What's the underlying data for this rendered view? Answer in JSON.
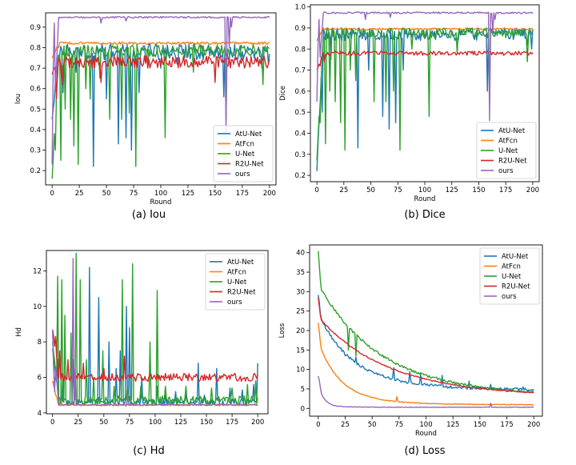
{
  "colors": {
    "AtU-Net": "#1f77b4",
    "AtFcn": "#ff7f0e",
    "U-Net": "#2ca02c",
    "R2U-Net": "#d62728",
    "ours": "#9467bd"
  },
  "chart_data": [
    {
      "id": "iou",
      "type": "line",
      "caption": "(a)  Iou",
      "xlabel": "Round",
      "ylabel": "Iou",
      "xlim": [
        -6,
        206
      ],
      "ylim": [
        0.13,
        0.97
      ],
      "xticks": [
        0,
        25,
        50,
        75,
        100,
        125,
        150,
        175,
        200
      ],
      "yticks": [
        0.2,
        0.3,
        0.4,
        0.5,
        0.6,
        0.7,
        0.8,
        0.9
      ],
      "legend_position": "bottom-right",
      "series": [
        {
          "name": "AtU-Net",
          "base": 0.78,
          "start": 0.45,
          "noise": 0.04,
          "dips": [
            [
              10,
              0.58
            ],
            [
              22,
              0.68
            ],
            [
              38,
              0.22
            ],
            [
              50,
              0.55
            ],
            [
              61,
              0.33
            ],
            [
              68,
              0.36
            ],
            [
              73,
              0.3
            ],
            [
              80,
              0.58
            ],
            [
              100,
              0.7
            ],
            [
              115,
              0.72
            ],
            [
              158,
              0.56
            ],
            [
              193,
              0.7
            ],
            [
              199,
              0.72
            ]
          ]
        },
        {
          "name": "AtFcn",
          "base": 0.822,
          "start": 0.75,
          "noise": 0.006,
          "dips": [
            [
              3,
              0.78
            ],
            [
              6,
              0.8
            ]
          ]
        },
        {
          "name": "U-Net",
          "base": 0.785,
          "start": 0.16,
          "noise": 0.03,
          "dips": [
            [
              3,
              0.3
            ],
            [
              8,
              0.25
            ],
            [
              12,
              0.5
            ],
            [
              17,
              0.45
            ],
            [
              20,
              0.32
            ],
            [
              24,
              0.23
            ],
            [
              31,
              0.6
            ],
            [
              35,
              0.55
            ],
            [
              44,
              0.65
            ],
            [
              53,
              0.45
            ],
            [
              64,
              0.45
            ],
            [
              71,
              0.48
            ],
            [
              77,
              0.22
            ],
            [
              88,
              0.7
            ],
            [
              104,
              0.36
            ],
            [
              130,
              0.68
            ],
            [
              160,
              0.45
            ],
            [
              194,
              0.62
            ]
          ]
        },
        {
          "name": "R2U-Net",
          "base": 0.73,
          "start": 0.67,
          "noise": 0.03,
          "dips": [
            [
              4,
              0.55
            ],
            [
              9,
              0.62
            ],
            [
              45,
              0.63
            ],
            [
              150,
              0.63
            ]
          ]
        },
        {
          "name": "ours",
          "base": 0.948,
          "start": 0.23,
          "noise": 0.004,
          "dips": [
            [
              1,
              0.7
            ],
            [
              2,
              0.92
            ],
            [
              45,
              0.92
            ],
            [
              68,
              0.93
            ],
            [
              160,
              0.38
            ],
            [
              163,
              0.8
            ],
            [
              165,
              0.9
            ]
          ]
        }
      ]
    },
    {
      "id": "dice",
      "type": "line",
      "caption": "(b)  Dice",
      "xlabel": "Round",
      "ylabel": "Dice",
      "xlim": [
        -6,
        206
      ],
      "ylim": [
        0.17,
        1.01
      ],
      "xticks": [
        0,
        25,
        50,
        75,
        100,
        125,
        150,
        175,
        200
      ],
      "yticks": [
        0.2,
        0.3,
        0.4,
        0.5,
        0.6,
        0.7,
        0.8,
        0.9,
        1.0
      ],
      "legend_position": "bottom-right",
      "series": [
        {
          "name": "AtU-Net",
          "base": 0.87,
          "start": 0.22,
          "noise": 0.03,
          "dips": [
            [
              5,
              0.5
            ],
            [
              13,
              0.75
            ],
            [
              38,
              0.33
            ],
            [
              48,
              0.7
            ],
            [
              61,
              0.48
            ],
            [
              67,
              0.42
            ],
            [
              73,
              0.45
            ],
            [
              80,
              0.7
            ],
            [
              100,
              0.85
            ],
            [
              158,
              0.6
            ],
            [
              195,
              0.82
            ],
            [
              199,
              0.8
            ]
          ]
        },
        {
          "name": "AtFcn",
          "base": 0.895,
          "start": 0.84,
          "noise": 0.005,
          "dips": [
            [
              3,
              0.87
            ]
          ]
        },
        {
          "name": "U-Net",
          "base": 0.875,
          "start": 0.27,
          "noise": 0.025,
          "dips": [
            [
              3,
              0.45
            ],
            [
              8,
              0.35
            ],
            [
              12,
              0.6
            ],
            [
              17,
              0.55
            ],
            [
              22,
              0.45
            ],
            [
              26,
              0.32
            ],
            [
              31,
              0.7
            ],
            [
              36,
              0.65
            ],
            [
              53,
              0.55
            ],
            [
              64,
              0.55
            ],
            [
              71,
              0.6
            ],
            [
              77,
              0.32
            ],
            [
              88,
              0.8
            ],
            [
              104,
              0.48
            ],
            [
              130,
              0.78
            ],
            [
              160,
              0.55
            ],
            [
              195,
              0.74
            ]
          ]
        },
        {
          "name": "R2U-Net",
          "base": 0.78,
          "start": 0.7,
          "noise": 0.01,
          "dips": [
            [
              3,
              0.72
            ],
            [
              7,
              0.74
            ]
          ]
        },
        {
          "name": "ours",
          "base": 0.972,
          "start": 0.55,
          "noise": 0.004,
          "dips": [
            [
              1,
              0.8
            ],
            [
              2,
              0.94
            ],
            [
              45,
              0.94
            ],
            [
              68,
              0.95
            ],
            [
              160,
              0.46
            ],
            [
              163,
              0.88
            ],
            [
              165,
              0.94
            ]
          ]
        }
      ]
    },
    {
      "id": "hd",
      "type": "line",
      "caption": "(c)  Hd",
      "xlabel": "",
      "ylabel": "Hd",
      "xlim": [
        -6,
        210
      ],
      "ylim": [
        3.95,
        13.15
      ],
      "xticks": [
        0,
        25,
        50,
        75,
        100,
        125,
        150,
        175,
        200
      ],
      "yticks": [
        4,
        6,
        8,
        10,
        12
      ],
      "legend_position": "top-right",
      "series": [
        {
          "name": "AtU-Net",
          "base": 4.6,
          "start": 7.6,
          "noise": 0.18,
          "spikes": [
            [
              5,
              7.0
            ],
            [
              10,
              6.2
            ],
            [
              20,
              7.0
            ],
            [
              36,
              12.2
            ],
            [
              45,
              10.5
            ],
            [
              55,
              8.0
            ],
            [
              62,
              6.5
            ],
            [
              66,
              7.5
            ],
            [
              72,
              10.0
            ],
            [
              75,
              8.8
            ],
            [
              87,
              6.0
            ],
            [
              102,
              5.5
            ],
            [
              110,
              5.0
            ],
            [
              120,
              5.2
            ],
            [
              130,
              5.0
            ],
            [
              142,
              6.8
            ],
            [
              148,
              5.0
            ],
            [
              160,
              6.5
            ],
            [
              173,
              5.4
            ],
            [
              185,
              5.3
            ],
            [
              196,
              5.6
            ],
            [
              200,
              6.8
            ]
          ]
        },
        {
          "name": "AtFcn",
          "base": 4.45,
          "start": 5.8,
          "noise": 0.05,
          "spikes": [
            [
              3,
              5.0
            ],
            [
              8,
              4.8
            ]
          ]
        },
        {
          "name": "U-Net",
          "base": 4.7,
          "start": 8.0,
          "noise": 0.25,
          "spikes": [
            [
              5,
              11.7
            ],
            [
              9,
              11.5
            ],
            [
              12,
              9.5
            ],
            [
              18,
              8.5
            ],
            [
              23,
              13.0
            ],
            [
              27,
              11.5
            ],
            [
              33,
              7.0
            ],
            [
              40,
              6.0
            ],
            [
              49,
              7.5
            ],
            [
              60,
              5.5
            ],
            [
              68,
              11.5
            ],
            [
              73,
              5.5
            ],
            [
              78,
              12.4
            ],
            [
              86,
              5.5
            ],
            [
              95,
              8.0
            ],
            [
              102,
              10.9
            ],
            [
              110,
              5.5
            ],
            [
              130,
              5.5
            ],
            [
              155,
              5.4
            ],
            [
              175,
              5.4
            ],
            [
              190,
              5.6
            ],
            [
              198,
              5.8
            ]
          ]
        },
        {
          "name": "R2U-Net",
          "base": 6.0,
          "start": 8.7,
          "noise": 0.22,
          "spikes": [
            [
              3,
              8.3
            ],
            [
              7,
              7.5
            ],
            [
              15,
              7.0
            ],
            [
              30,
              6.8
            ],
            [
              50,
              6.5
            ],
            [
              70,
              7.2
            ]
          ]
        },
        {
          "name": "ours",
          "base": 4.45,
          "start": 8.7,
          "noise": 0.03,
          "spikes": [
            [
              1,
              6.5
            ],
            [
              2,
              5.2
            ],
            [
              20,
              12.7
            ],
            [
              22,
              6.5
            ],
            [
              73,
              5.0
            ]
          ]
        }
      ]
    },
    {
      "id": "loss",
      "type": "line",
      "caption": "(d)  Loss",
      "xlabel": "Round",
      "ylabel": "Loss",
      "xlim": [
        -8,
        208
      ],
      "ylim": [
        -2,
        42
      ],
      "xticks": [
        0,
        25,
        50,
        75,
        100,
        125,
        150,
        175,
        200
      ],
      "yticks": [
        0,
        5,
        10,
        15,
        20,
        25,
        30,
        35,
        40
      ],
      "legend_position": "top-right",
      "series": [
        {
          "name": "AtU-Net",
          "start": 29,
          "end": 4.5,
          "tau": 30,
          "mid": 14,
          "noise": 0.35,
          "spikes": [
            [
              25,
              13.5
            ],
            [
              35,
              13.2
            ],
            [
              70,
              10.5
            ],
            [
              85,
              9.5
            ],
            [
              95,
              8.8
            ],
            [
              115,
              8.5
            ],
            [
              140,
              7.0
            ],
            [
              160,
              6.2
            ],
            [
              190,
              5.5
            ]
          ]
        },
        {
          "name": "AtFcn",
          "start": 22,
          "end": 0.9,
          "tau": 20,
          "mid": 6,
          "noise": 0.1,
          "spikes": [
            [
              73,
              3.0
            ]
          ]
        },
        {
          "name": "U-Net",
          "start": 40.5,
          "end": 2.6,
          "tau": 55,
          "mid": 12,
          "noise": 0.3,
          "spikes": [
            [
              28,
              15.0
            ],
            [
              35,
              13.5
            ],
            [
              75,
              11.0
            ],
            [
              110,
              8.0
            ],
            [
              140,
              6.5
            ],
            [
              180,
              5.0
            ]
          ]
        },
        {
          "name": "R2U-Net",
          "start": 28.5,
          "end": 2.4,
          "tau": 60,
          "mid": 12,
          "noise": 0.15,
          "spikes": []
        },
        {
          "name": "ours",
          "start": 8.3,
          "end": 0.3,
          "tau": 5,
          "mid": 2,
          "noise": 0.06,
          "spikes": [
            [
              160,
              1.3
            ]
          ]
        }
      ]
    }
  ]
}
